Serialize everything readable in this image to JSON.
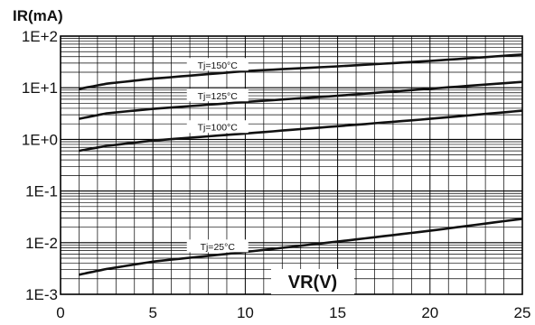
{
  "chart_data": {
    "type": "line",
    "ylabel": "IR(mA)",
    "xlabel": "VR(V)",
    "xlim": [
      0,
      25
    ],
    "ylim": [
      0.001,
      100
    ],
    "y_scale": "log",
    "grid": true,
    "x_ticks": [
      "0",
      "5",
      "10",
      "15",
      "20",
      "25"
    ],
    "y_ticks": [
      "1E-3",
      "1E-2",
      "1E-1",
      "1E+0",
      "1E+1",
      "1E+2"
    ],
    "series": [
      {
        "name": "Tj=150°C",
        "x": [
          1,
          2.5,
          5,
          10,
          15,
          20,
          25
        ],
        "y": [
          9.5,
          12,
          15,
          21,
          26,
          33,
          44
        ]
      },
      {
        "name": "Tj=125°C",
        "x": [
          1,
          2.5,
          5,
          10,
          15,
          20,
          25
        ],
        "y": [
          2.5,
          3.2,
          3.9,
          5.3,
          7,
          9.6,
          13
        ]
      },
      {
        "name": "Tj=100°C",
        "x": [
          1,
          2.5,
          5,
          10,
          15,
          20,
          25
        ],
        "y": [
          0.6,
          0.75,
          0.95,
          1.3,
          1.8,
          2.5,
          3.6
        ]
      },
      {
        "name": "Tj=25°C",
        "x": [
          1,
          2.5,
          5,
          10,
          15,
          20,
          25
        ],
        "y": [
          0.0024,
          0.0031,
          0.0043,
          0.0066,
          0.0105,
          0.017,
          0.029
        ]
      }
    ]
  }
}
